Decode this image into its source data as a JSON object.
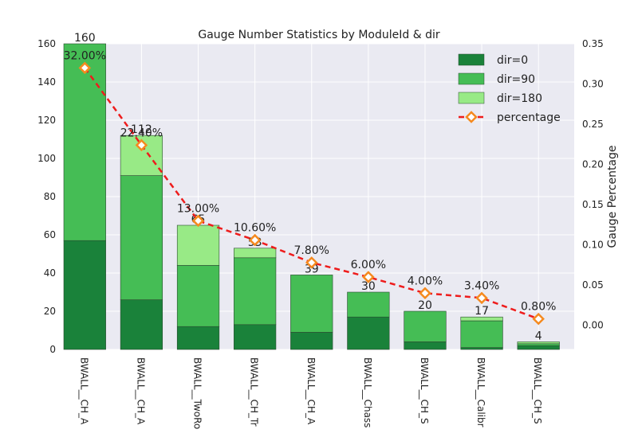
{
  "chart_data": {
    "type": "bar",
    "title": "Gauge Number Statistics by ModuleId & dir",
    "xlabel": "",
    "ylabel": "",
    "y2label": "Gauge Percentage",
    "categories": [
      "BWALL__CH_A",
      "BWALL__CH_A",
      "BWALL__TwoRo",
      "BWALL__CH_Tr",
      "BWALL__CH_A",
      "BWALL__Chass",
      "BWALL__CH_S",
      "BWALL__Calibr",
      "BWALL__CH_S"
    ],
    "series": [
      {
        "name": "dir=0",
        "values": [
          57,
          26,
          12,
          13,
          9,
          17,
          4,
          1,
          2
        ],
        "color": "#1a823a"
      },
      {
        "name": "dir=90",
        "values": [
          103,
          65,
          32,
          35,
          30,
          13,
          16,
          14,
          1
        ],
        "color": "#45bd55"
      },
      {
        "name": "dir=180",
        "values": [
          0,
          21,
          21,
          5,
          0,
          0,
          0,
          2,
          1
        ],
        "color": "#98ea86"
      }
    ],
    "totals": [
      "160",
      "112",
      "65",
      "53",
      "39",
      "30",
      "20",
      "17",
      "4"
    ],
    "percentage": {
      "name": "percentage",
      "values": [
        0.32,
        0.224,
        0.13,
        0.106,
        0.078,
        0.06,
        0.04,
        0.034,
        0.008
      ],
      "labels": [
        "32.00%",
        "22.40%",
        "13.00%",
        "10.60%",
        "7.80%",
        "6.00%",
        "4.00%",
        "3.40%",
        "0.80%"
      ],
      "line_color": "#ee1c1c",
      "marker_color": "#f58a1f"
    },
    "ylim": [
      0,
      160
    ],
    "y_ticks": [
      "0",
      "20",
      "40",
      "60",
      "80",
      "100",
      "120",
      "140",
      "160"
    ],
    "y2lim": [
      -0.03,
      0.35
    ],
    "y2_ticks": [
      "0.00",
      "0.05",
      "0.10",
      "0.15",
      "0.20",
      "0.25",
      "0.30",
      "0.35"
    ],
    "legend_position": "top-right",
    "grid": true,
    "background_color": "#eaeaf2"
  }
}
